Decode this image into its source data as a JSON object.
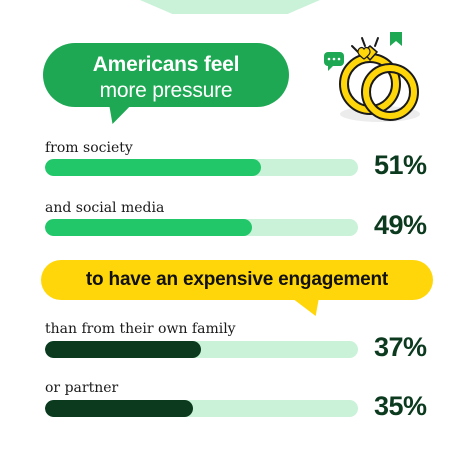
{
  "headline": {
    "line1": "Americans feel",
    "line2": "more pressure"
  },
  "subheadline": "to have an expensive engagement",
  "colors": {
    "bright_green": "#1ea853",
    "bar_green": "#22c76a",
    "dark_green": "#0c3a1f",
    "track": "#c9f2d8",
    "yellow": "#ffd60a"
  },
  "chart_data": {
    "type": "bar",
    "orientation": "horizontal",
    "categories": [
      "from society",
      "and social media",
      "than from their own family",
      "or partner"
    ],
    "values": [
      51,
      49,
      37,
      35
    ],
    "value_labels": [
      "51%",
      "49%",
      "37%",
      "35%"
    ],
    "xlim": [
      0,
      100
    ]
  }
}
